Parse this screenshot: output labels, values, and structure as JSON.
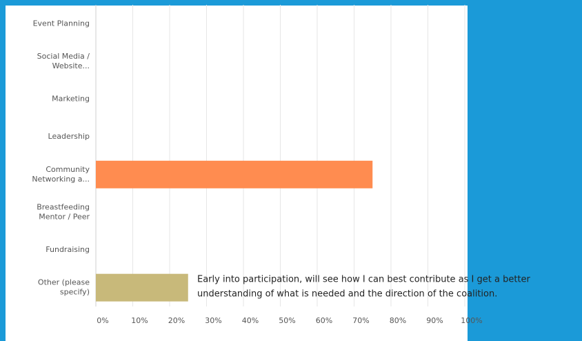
{
  "chart_data": {
    "type": "bar",
    "orientation": "horizontal",
    "categories": [
      [
        "Event Planning"
      ],
      [
        "Social Media /",
        "Website..."
      ],
      [
        "Marketing"
      ],
      [
        "Leadership"
      ],
      [
        "Community",
        "Networking a..."
      ],
      [
        "Breastfeeding",
        "Mentor / Peer"
      ],
      [
        "Fundraising"
      ],
      [
        "Other (please",
        "specify)"
      ]
    ],
    "values": [
      0,
      0,
      0,
      0,
      75,
      0,
      0,
      25
    ],
    "colors": [
      "#ff8c50",
      "#ff8c50",
      "#ff8c50",
      "#ff8c50",
      "#ff8c50",
      "#c8b97a",
      "#c8b97a",
      "#c8b97a"
    ],
    "xlim": [
      0,
      100
    ],
    "xticks": [
      {
        "value": 0,
        "label": "0%"
      },
      {
        "value": 10,
        "label": "10%"
      },
      {
        "value": 20,
        "label": "20%"
      },
      {
        "value": 30,
        "label": "30%"
      },
      {
        "value": 40,
        "label": "40%"
      },
      {
        "value": 50,
        "label": "50%"
      },
      {
        "value": 60,
        "label": "60%"
      },
      {
        "value": 70,
        "label": "70%"
      },
      {
        "value": 80,
        "label": "80%"
      },
      {
        "value": 90,
        "label": "90%"
      },
      {
        "value": 100,
        "label": "100%"
      }
    ],
    "grid": true,
    "annotation": [
      "Early into participation, will see how I can best contribute as I get a better",
      "understanding of what is needed and the direction of the coalition."
    ]
  }
}
